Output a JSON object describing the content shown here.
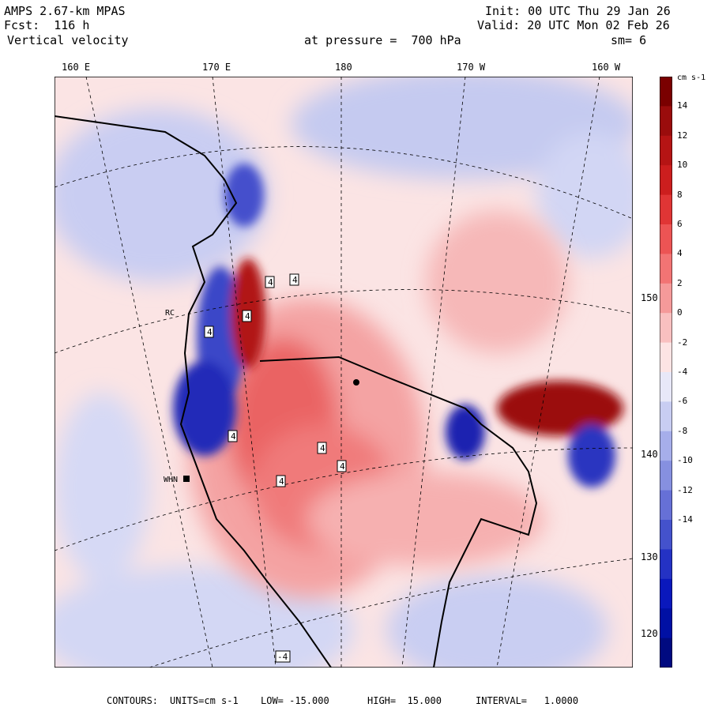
{
  "header": {
    "model": "AMPS 2.67-km MPAS",
    "forecast": "Fcst:  116 h",
    "variable": "Vertical velocity",
    "level": "at pressure =  700 hPa",
    "init": "Init: 00 UTC Thu 29 Jan 26",
    "valid": "Valid: 20 UTC Mon 02 Feb 26",
    "smoothing": "sm= 6"
  },
  "top_axis": [
    "160 E",
    "170 E",
    "180",
    "170 W",
    "160 W"
  ],
  "right_axis": [
    "150 W",
    "140 W",
    "130 W",
    "120 W"
  ],
  "colorbar": {
    "units": "cm s-1",
    "labels": [
      "14",
      "12",
      "10",
      "8",
      "6",
      "4",
      "2",
      "0",
      "-2",
      "-4",
      "-6",
      "-8",
      "-10",
      "-12",
      "-14"
    ],
    "colors": [
      "#7a0000",
      "#9a0c0c",
      "#b51414",
      "#cc1e1e",
      "#e03535",
      "#ec5454",
      "#f27474",
      "#f59a9a",
      "#f9c0c0",
      "#fde4e4",
      "#e8e8f8",
      "#c8cdf2",
      "#a6aeea",
      "#8690e0",
      "#6670d6",
      "#4452cc",
      "#2432c4",
      "#0a18bc",
      "#0010a4",
      "#000a80"
    ]
  },
  "station_labels": [
    "WHN",
    "RC"
  ],
  "contour_labels": [
    "4",
    "4",
    "4",
    "4",
    "4",
    "4",
    "4",
    "4",
    "-4"
  ],
  "footer": {
    "contours": "CONTOURS:",
    "units_label": "UNITS=cm s-1",
    "low": "LOW= -15.000",
    "high": "HIGH=  15.000",
    "interval": "INTERVAL=   1.0000"
  }
}
